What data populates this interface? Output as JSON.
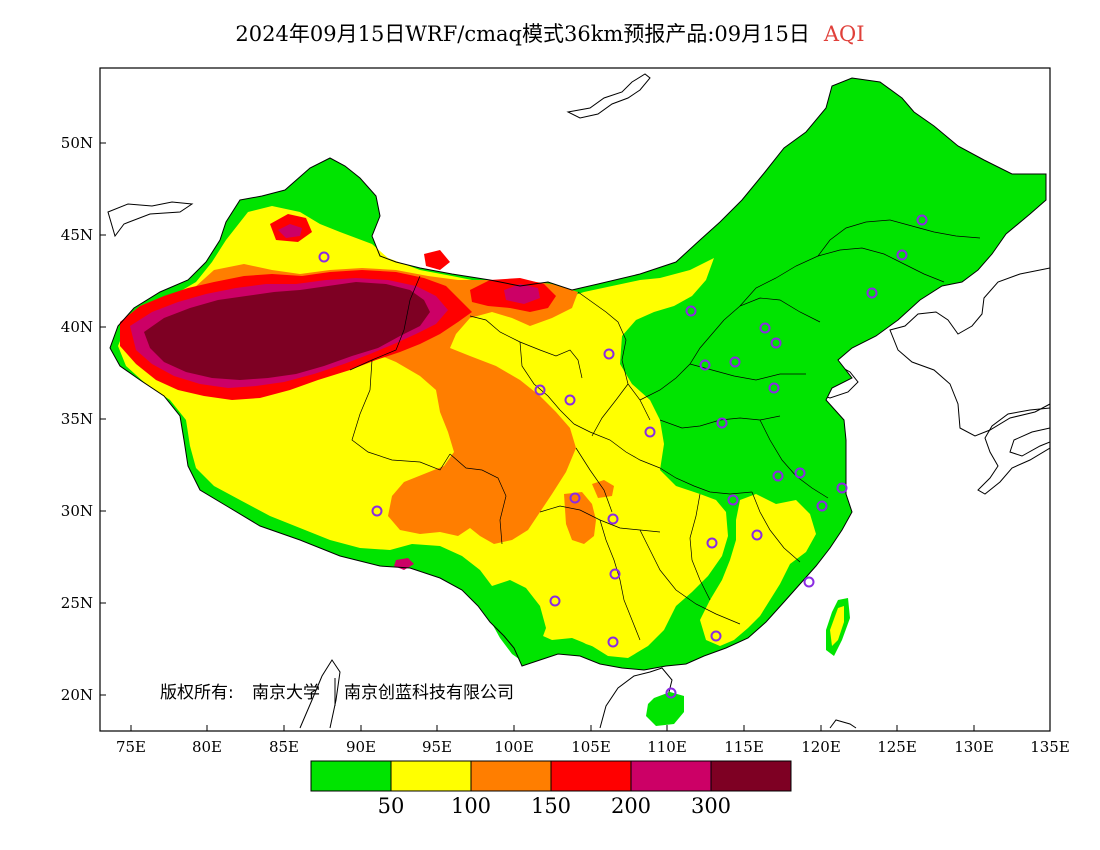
{
  "title": {
    "main": "2024年09月15日WRF/cmaq模式36km预报产品:09月15日",
    "variable": "AQI"
  },
  "copyright": {
    "prefix": "版权所有:",
    "org1": "南京大学",
    "org2": "南京创蓝科技有限公司"
  },
  "axes": {
    "x_ticks": [
      "75E",
      "80E",
      "85E",
      "90E",
      "95E",
      "100E",
      "105E",
      "110E",
      "115E",
      "120E",
      "125E",
      "130E",
      "135E"
    ],
    "y_ticks": [
      "50N",
      "45N",
      "40N",
      "35N",
      "30N",
      "25N",
      "20N"
    ],
    "lon_range": [
      73,
      135
    ],
    "lat_range": [
      18,
      54
    ]
  },
  "legend": {
    "colors": [
      "#00e400",
      "#ffff00",
      "#ff7e00",
      "#ff0000",
      "#cc0066",
      "#7e0023"
    ],
    "labels": [
      "50",
      "100",
      "150",
      "200",
      "300"
    ]
  },
  "palette": {
    "good": "#00e400",
    "moderate": "#ffff00",
    "usg": "#ff7e00",
    "unhealthy": "#ff0000",
    "very_unhealthy": "#cc0066",
    "hazardous": "#7e0023",
    "station_marker": "#8a2be2"
  }
}
